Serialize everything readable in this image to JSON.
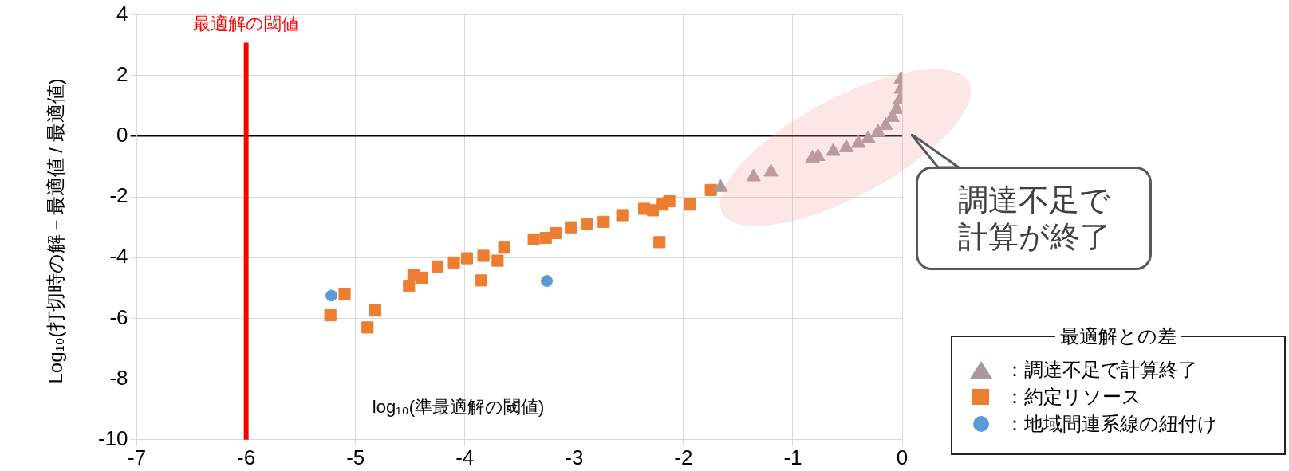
{
  "chart_data": {
    "type": "scatter",
    "xlabel": "log₁₀(準最適解の閾値)",
    "ylabel": "Log₁₀(打切時の解－最適値 / 最適値)",
    "legend_title": "最適解との差",
    "xlim": [
      -7,
      0
    ],
    "xticks": [
      -7,
      -6,
      -5,
      -4,
      -3,
      -2,
      -1,
      0
    ],
    "ylim": [
      -10,
      4
    ],
    "yticks": [
      -10,
      -8,
      -6,
      -4,
      -2,
      0,
      2,
      4
    ],
    "grid": true,
    "legend": "bottom right",
    "ref_lines": [
      {
        "axis": "x",
        "value": -6,
        "label": "最適解の閾値",
        "color": "#ff0000"
      }
    ],
    "annotations": [
      "調達不足で計算が終了"
    ],
    "series": [
      {
        "name": "：調達不足で計算終了",
        "color": "#a89a9a",
        "marker": "triangle",
        "x": [
          -1.66,
          -1.36,
          -1.2,
          -0.82,
          -0.77,
          -0.63,
          -0.51,
          -0.4,
          -0.31,
          -0.22,
          -0.15,
          -0.09,
          -0.05,
          -0.02,
          -0.01,
          -0.01
        ],
        "values": [
          -1.69,
          -1.34,
          -1.18,
          -0.72,
          -0.67,
          -0.5,
          -0.38,
          -0.24,
          -0.08,
          0.13,
          0.35,
          0.62,
          0.88,
          1.2,
          1.55,
          1.88
        ]
      },
      {
        "name": "：約定リソース",
        "color": "#ed7d31",
        "marker": "square",
        "x": [
          -5.23,
          -5.1,
          -4.89,
          -4.82,
          -4.51,
          -4.47,
          -4.39,
          -4.25,
          -4.1,
          -3.98,
          -3.83,
          -3.7,
          -3.64,
          -3.85,
          -3.37,
          -3.26,
          -3.17,
          -3.03,
          -2.88,
          -2.73,
          -2.56,
          -2.36,
          -2.28,
          -2.19,
          -2.13,
          -2.22,
          -1.94,
          -1.75
        ],
        "values": [
          -5.9,
          -5.2,
          -6.3,
          -5.74,
          -4.93,
          -4.56,
          -4.66,
          -4.29,
          -4.16,
          -4.02,
          -3.94,
          -4.1,
          -3.67,
          -4.75,
          -3.4,
          -3.35,
          -3.19,
          -3.0,
          -2.9,
          -2.82,
          -2.6,
          -2.39,
          -2.44,
          -2.25,
          -2.14,
          -3.49,
          -2.25,
          -1.77
        ]
      },
      {
        "name": "：地域間連系線の紐付け",
        "color": "#5b9bd5",
        "marker": "circle",
        "x": [
          -5.22,
          -3.25
        ],
        "values": [
          -5.25,
          -4.77
        ]
      }
    ]
  }
}
